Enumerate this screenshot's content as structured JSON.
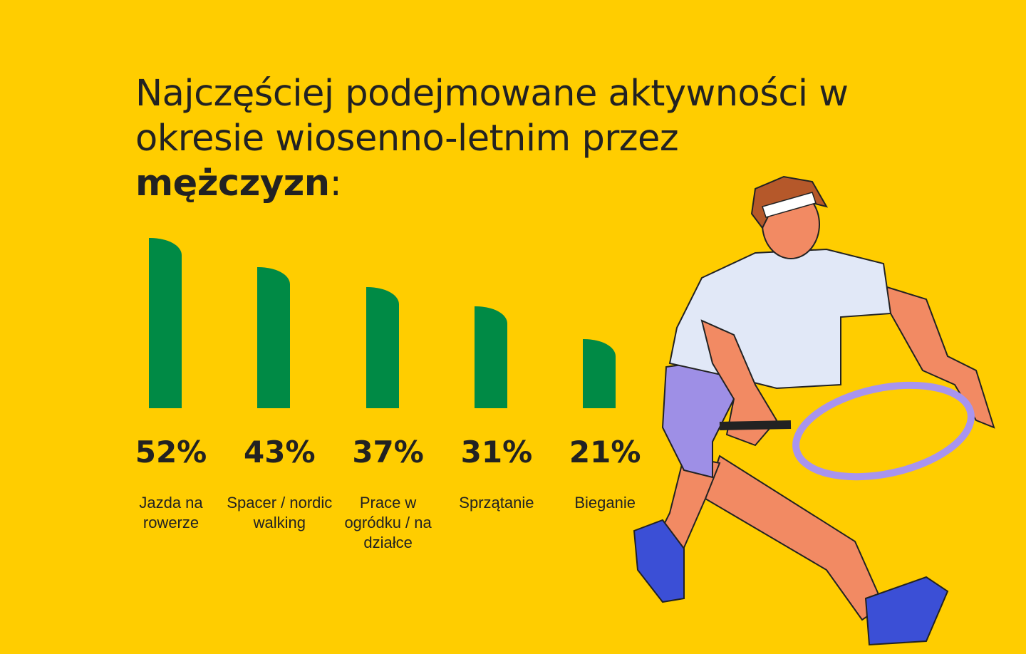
{
  "chart_data": {
    "type": "bar",
    "title": "Najczęściej podejmowane aktywności w okresie wiosenno-letnim przez",
    "title_emphasis": "mężczyzn",
    "title_suffix": ":",
    "categories": [
      "Jazda na rowerze",
      "Spacer / nordic walking",
      "Prace w ogródku / na działce",
      "Sprzątanie",
      "Bieganie"
    ],
    "values": [
      52,
      43,
      37,
      31,
      21
    ],
    "value_labels": [
      "52%",
      "43%",
      "37%",
      "31%",
      "21%"
    ],
    "color": "#008a45"
  }
}
